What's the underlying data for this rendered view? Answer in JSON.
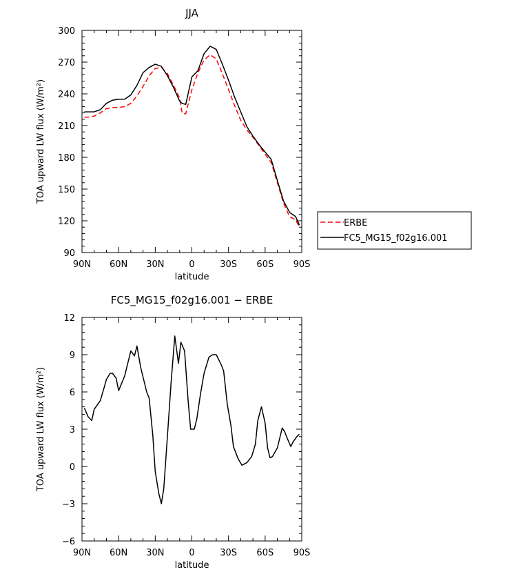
{
  "chart_data": [
    {
      "type": "line",
      "title": "JJA",
      "xlabel": "latitude",
      "ylabel": "TOA upward LW flux (W/m²)",
      "xlim": [
        90,
        -90
      ],
      "ylim": [
        90,
        300
      ],
      "xticks": [
        90,
        60,
        30,
        0,
        -30,
        -60,
        -90
      ],
      "xtick_labels": [
        "90N",
        "60N",
        "30N",
        "0",
        "30S",
        "60S",
        "90S"
      ],
      "yticks": [
        90,
        120,
        150,
        180,
        210,
        240,
        270,
        300
      ],
      "ytick_labels": [
        "90",
        "120",
        "150",
        "180",
        "210",
        "240",
        "270",
        "300"
      ],
      "grid": false,
      "legend_position": "outside-right",
      "colors": {
        "ERBE": "#ff0000",
        "FC5_MG15_f02g16.001": "#000000"
      },
      "series": [
        {
          "name": "ERBE",
          "style": "dashed",
          "x": [
            88,
            85,
            80,
            75,
            70,
            65,
            60,
            55,
            50,
            45,
            40,
            35,
            30,
            25,
            20,
            15,
            10,
            8,
            5,
            0,
            -5,
            -10,
            -15,
            -20,
            -25,
            -30,
            -35,
            -40,
            -45,
            -50,
            -55,
            -60,
            -65,
            -70,
            -75,
            -80,
            -85,
            -88
          ],
          "y": [
            218,
            218,
            219,
            222,
            226,
            227,
            227,
            228,
            231,
            238,
            247,
            257,
            264,
            265,
            259,
            248,
            236,
            222,
            221,
            244,
            260,
            272,
            277,
            273,
            259,
            244,
            229,
            215,
            206,
            199,
            191,
            183,
            175,
            156,
            137,
            124,
            121,
            114
          ]
        },
        {
          "name": "FC5_MG15_f02g16.001",
          "style": "solid",
          "x": [
            88,
            85,
            80,
            75,
            70,
            65,
            60,
            55,
            50,
            45,
            40,
            35,
            30,
            25,
            20,
            15,
            10,
            8,
            5,
            0,
            -5,
            -10,
            -15,
            -20,
            -25,
            -30,
            -35,
            -40,
            -45,
            -50,
            -55,
            -60,
            -65,
            -70,
            -75,
            -80,
            -85,
            -88
          ],
          "y": [
            223,
            223,
            223,
            225,
            231,
            234,
            235,
            235,
            239,
            248,
            260,
            265,
            268,
            266,
            257,
            246,
            233,
            231,
            230,
            256,
            262,
            278,
            285,
            282,
            268,
            253,
            237,
            223,
            209,
            200,
            192,
            185,
            178,
            158,
            139,
            128,
            124,
            116
          ]
        }
      ]
    },
    {
      "type": "line",
      "title": "FC5_MG15_f02g16.001 − ERBE",
      "xlabel": "latitude",
      "ylabel": "TOA upward LW flux (W/m²)",
      "xlim": [
        90,
        -90
      ],
      "ylim": [
        -6,
        12
      ],
      "xticks": [
        90,
        60,
        30,
        0,
        -30,
        -60,
        -90
      ],
      "xtick_labels": [
        "90N",
        "60N",
        "30N",
        "0",
        "30S",
        "60S",
        "90S"
      ],
      "yticks": [
        -6,
        -3,
        0,
        3,
        6,
        9,
        12
      ],
      "ytick_labels": [
        "−6",
        "−3",
        "0",
        "3",
        "6",
        "9",
        "12"
      ],
      "grid": false,
      "series": [
        {
          "style": "solid",
          "x": [
            88,
            85,
            82,
            80,
            75,
            72,
            70,
            67,
            65,
            62,
            60,
            55,
            50,
            47,
            45,
            42,
            37,
            35,
            32,
            30,
            27,
            25,
            23,
            20,
            17,
            14,
            11,
            9,
            6,
            3,
            1,
            -2,
            -4,
            -7,
            -10,
            -14,
            -17,
            -20,
            -24,
            -26,
            -29,
            -32,
            -34,
            -38,
            -41,
            -45,
            -49,
            -52,
            -54,
            -57,
            -60,
            -62,
            -64,
            -66,
            -70,
            -74,
            -76,
            -78,
            -81,
            -83,
            -86,
            -88
          ],
          "y": [
            4.7,
            4.0,
            3.7,
            4.6,
            5.3,
            6.3,
            7.0,
            7.5,
            7.5,
            7.1,
            6.1,
            7.3,
            9.3,
            8.9,
            9.7,
            8.0,
            6.0,
            5.5,
            2.5,
            -0.4,
            -2.2,
            -3.0,
            -1.8,
            2.5,
            6.8,
            10.5,
            8.3,
            10.0,
            9.3,
            5.2,
            3.0,
            3.0,
            3.8,
            5.8,
            7.5,
            8.8,
            9.0,
            9.0,
            8.2,
            7.7,
            5.0,
            3.3,
            1.6,
            0.6,
            0.1,
            0.3,
            0.8,
            1.8,
            3.7,
            4.8,
            3.5,
            1.5,
            0.7,
            0.8,
            1.5,
            3.1,
            2.8,
            2.3,
            1.6,
            2.0,
            2.4,
            2.6
          ]
        }
      ]
    }
  ]
}
